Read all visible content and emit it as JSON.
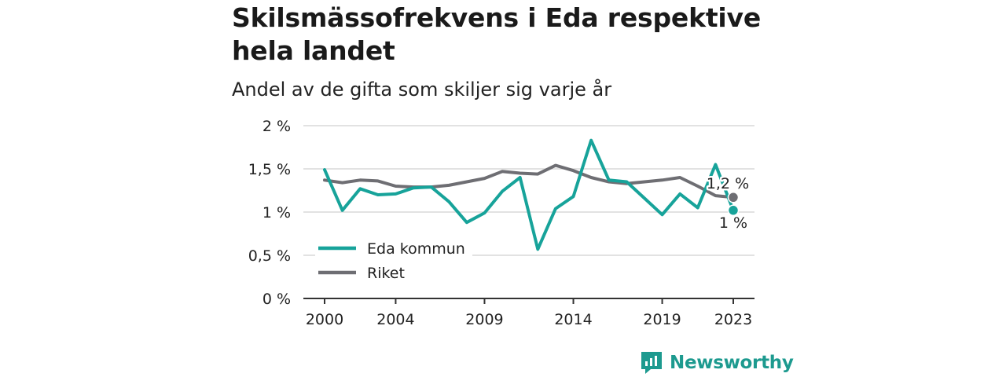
{
  "title": "Skilsmässofrekvens i Eda respektive hela landet",
  "subtitle": "Andel av de gifta som skiljer sig varje år",
  "brand": {
    "name": "Newsworthy",
    "icon": "newsworthy-logo-icon",
    "color": "#1d9a8f"
  },
  "colors": {
    "eda": "#17a39a",
    "riket": "#6e6e73",
    "grid": "#d9d9d9",
    "axis": "#333333"
  },
  "chart_data": {
    "type": "line",
    "x": [
      2000,
      2001,
      2002,
      2003,
      2004,
      2005,
      2006,
      2007,
      2008,
      2009,
      2010,
      2011,
      2012,
      2013,
      2014,
      2015,
      2016,
      2017,
      2018,
      2019,
      2020,
      2021,
      2022,
      2023
    ],
    "x_ticks": [
      2000,
      2004,
      2009,
      2014,
      2019,
      2023
    ],
    "x_tick_labels": [
      "2000",
      "2004",
      "2009",
      "2014",
      "2019",
      "2023"
    ],
    "y_ticks": [
      0,
      0.5,
      1,
      1.5,
      2
    ],
    "y_tick_labels": [
      "0 %",
      "0,5 %",
      "1 %",
      "1,5 %",
      "2 %"
    ],
    "ylim": [
      0,
      2
    ],
    "grid": true,
    "legend_position": "bottom-left",
    "series": [
      {
        "name": "Eda kommun",
        "color": "#17a39a",
        "values": [
          1.49,
          1.02,
          1.27,
          1.2,
          1.21,
          1.28,
          1.29,
          1.12,
          0.88,
          0.99,
          1.24,
          1.4,
          0.57,
          1.04,
          1.18,
          1.83,
          1.37,
          1.35,
          1.16,
          0.97,
          1.21,
          1.05,
          1.55,
          1.02
        ],
        "end_label": "1 %"
      },
      {
        "name": "Riket",
        "color": "#6e6e73",
        "values": [
          1.37,
          1.34,
          1.37,
          1.36,
          1.3,
          1.29,
          1.29,
          1.31,
          1.35,
          1.39,
          1.47,
          1.45,
          1.44,
          1.54,
          1.48,
          1.4,
          1.35,
          1.33,
          1.35,
          1.37,
          1.4,
          1.3,
          1.19,
          1.17
        ],
        "end_label": "1,2 %"
      }
    ]
  }
}
